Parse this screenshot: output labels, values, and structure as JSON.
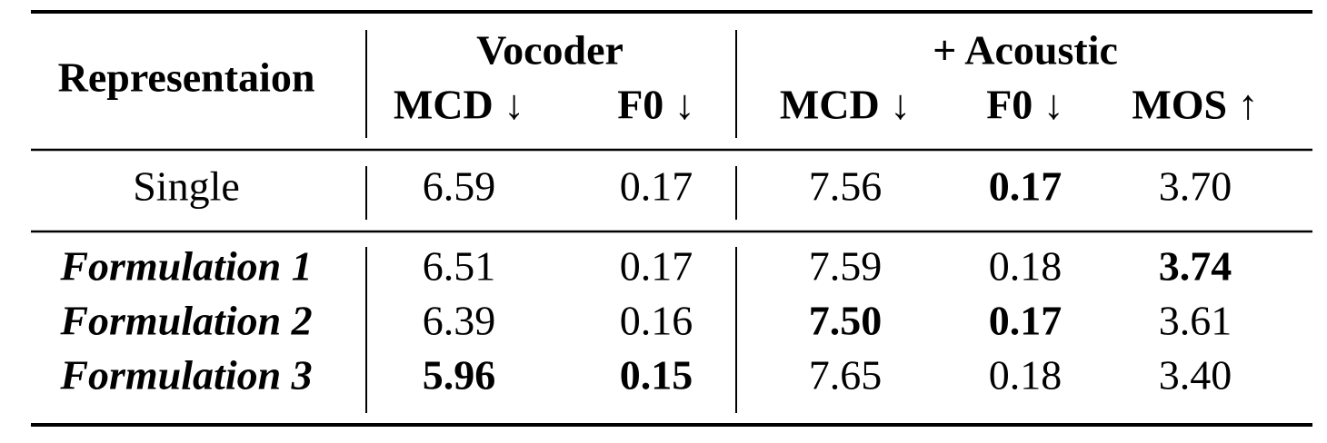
{
  "table": {
    "row_header": "Representaion",
    "groups": [
      "Vocoder",
      "+ Acoustic"
    ],
    "columns": [
      "MCD ↓",
      "F0 ↓",
      "MCD ↓",
      "F0 ↓",
      "MOS ↑"
    ],
    "rows": [
      {
        "label": "Single",
        "label_style": "regular",
        "cells": [
          "6.59",
          "0.17",
          "7.56",
          "0.17",
          "3.70"
        ],
        "bold": [
          false,
          false,
          false,
          true,
          false
        ]
      },
      {
        "label": "Formulation 1",
        "label_style": "bold-italic",
        "cells": [
          "6.51",
          "0.17",
          "7.59",
          "0.18",
          "3.74"
        ],
        "bold": [
          false,
          false,
          false,
          false,
          true
        ]
      },
      {
        "label": "Formulation 2",
        "label_style": "bold-italic",
        "cells": [
          "6.39",
          "0.16",
          "7.50",
          "0.17",
          "3.61"
        ],
        "bold": [
          false,
          false,
          true,
          true,
          false
        ]
      },
      {
        "label": "Formulation 3",
        "label_style": "bold-italic",
        "cells": [
          "5.96",
          "0.15",
          "7.65",
          "0.18",
          "3.40"
        ],
        "bold": [
          true,
          true,
          false,
          false,
          false
        ]
      }
    ]
  }
}
